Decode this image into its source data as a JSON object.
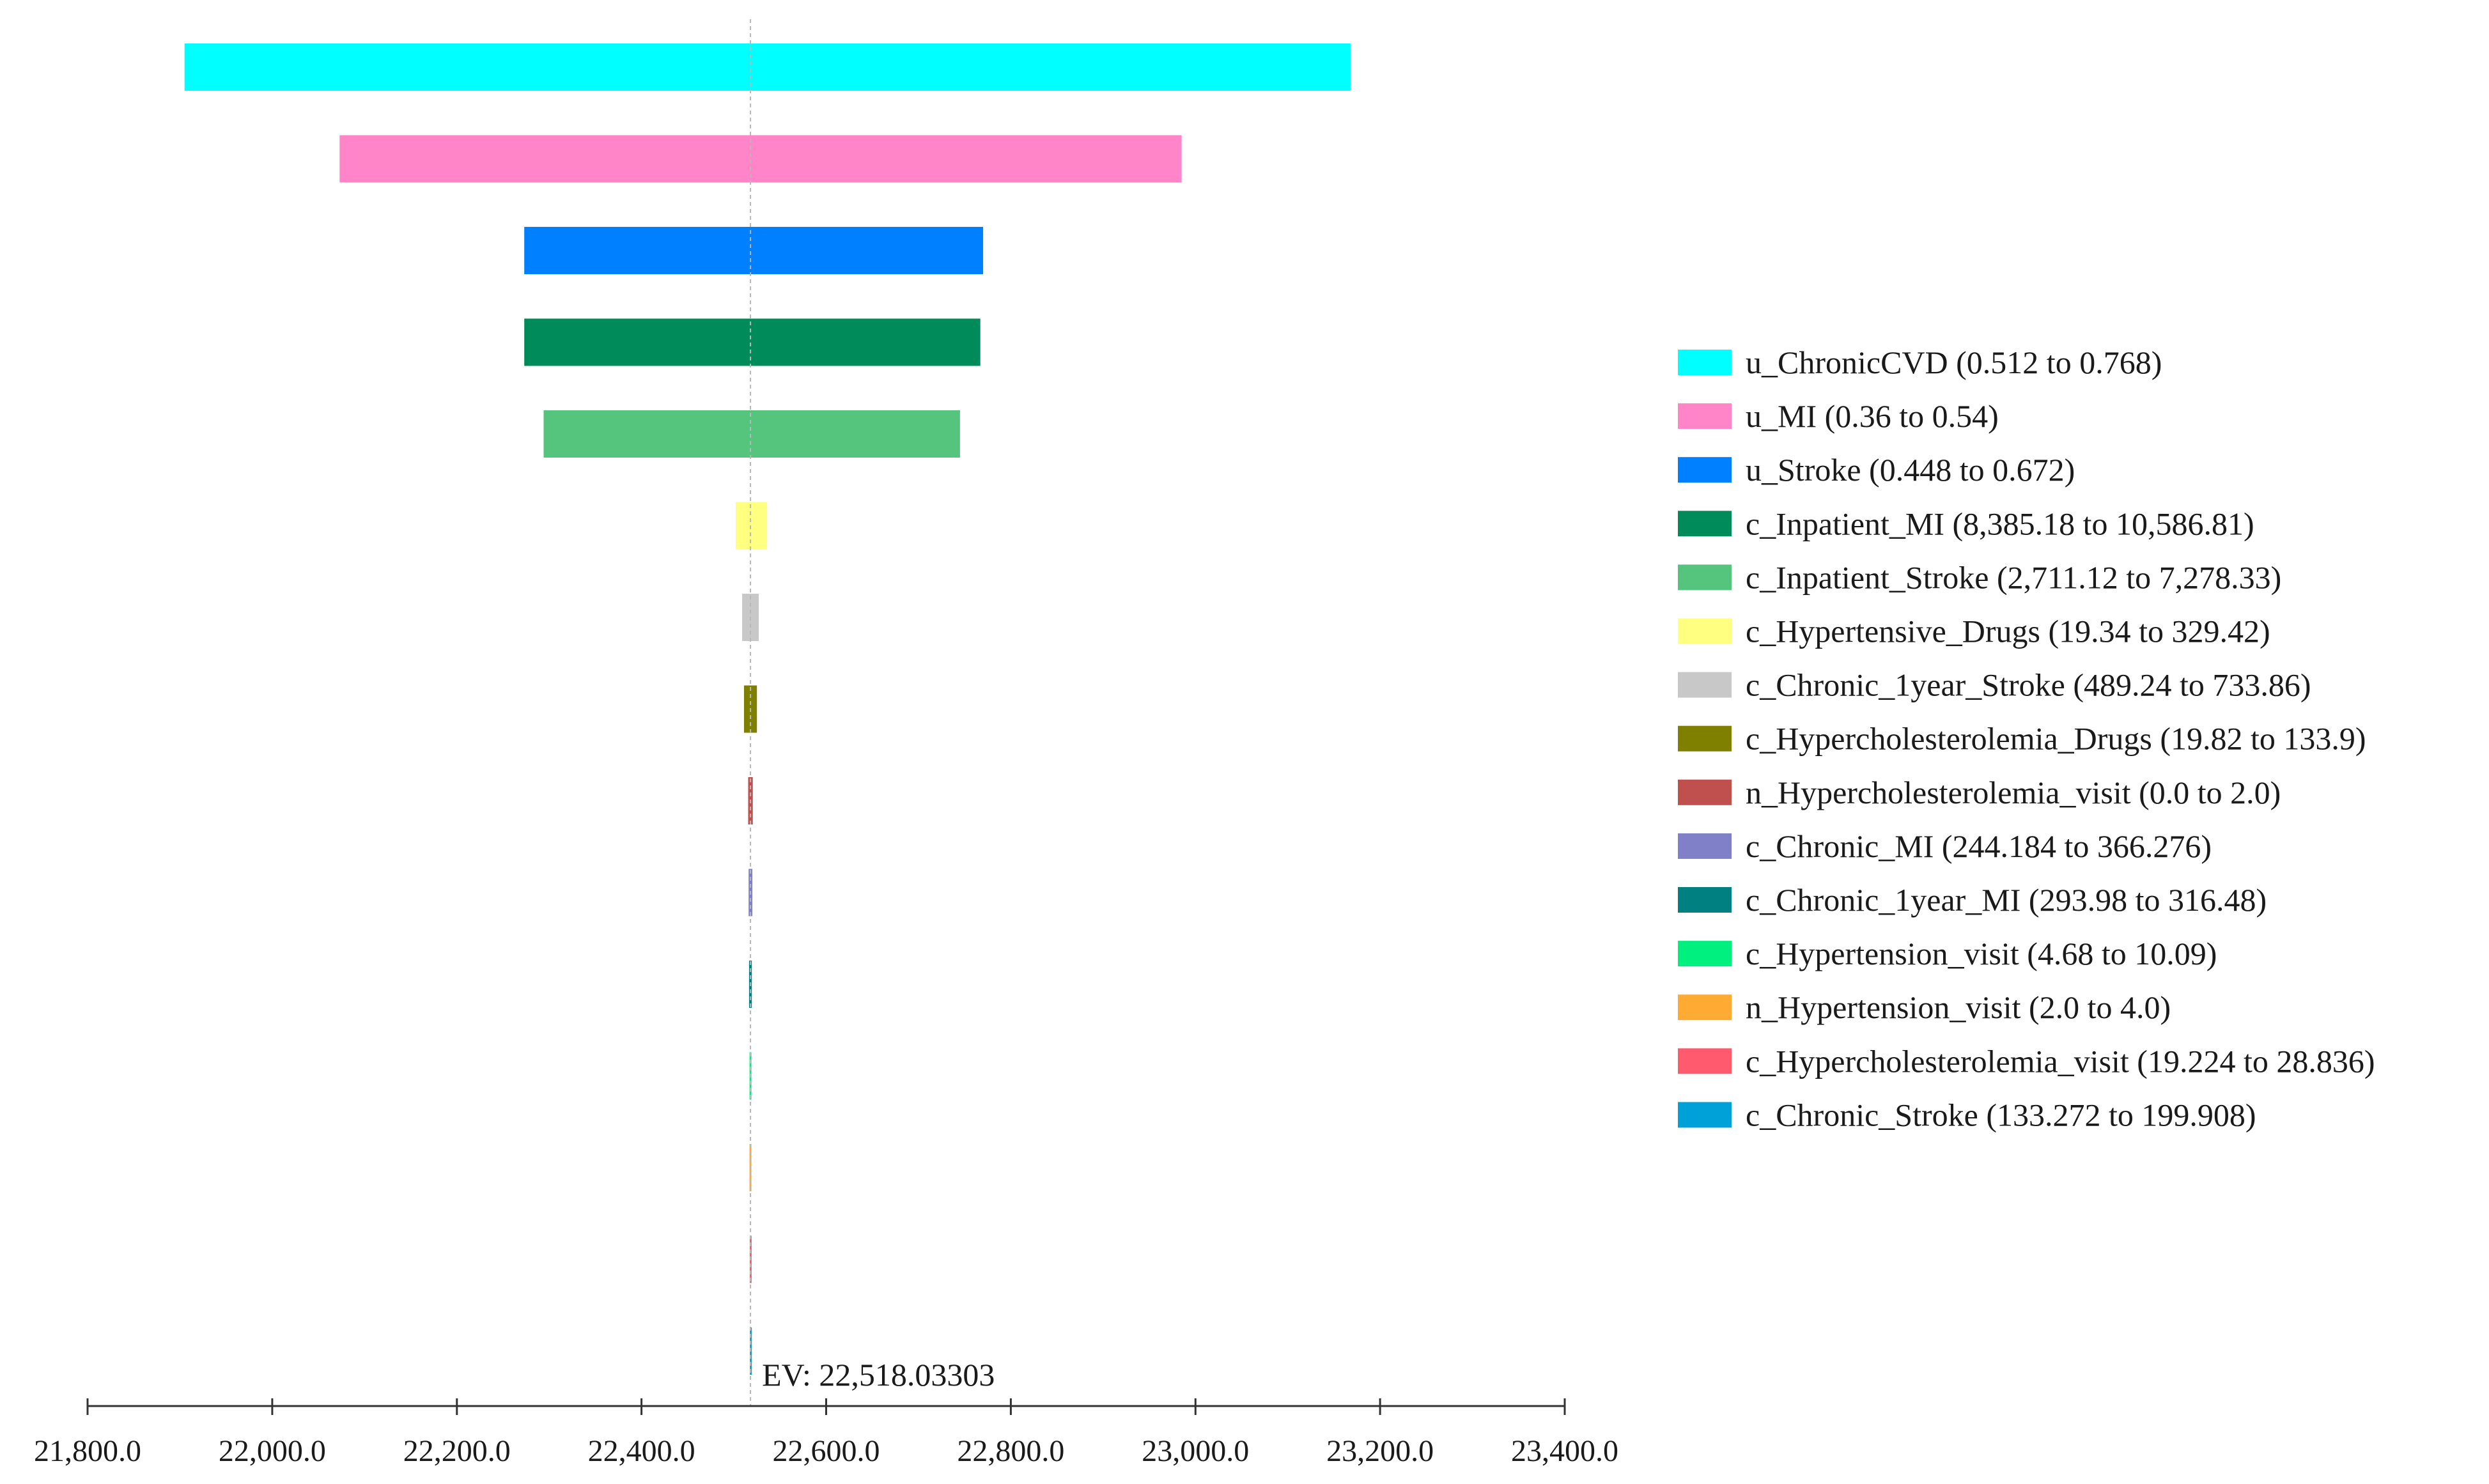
{
  "chart_data": {
    "type": "tornado",
    "ev_label": "EV: 22,518.03303",
    "ev_value": 22518.03303,
    "xlim": [
      21800.0,
      23400.0
    ],
    "x_ticks": [
      21800.0,
      22000.0,
      22200.0,
      22400.0,
      22600.0,
      22800.0,
      23000.0,
      23200.0,
      23400.0
    ],
    "x_tick_labels": [
      "21,800.0",
      "22,000.0",
      "22,200.0",
      "22,400.0",
      "22,600.0",
      "22,800.0",
      "23,000.0",
      "23,200.0",
      "23,400.0"
    ],
    "grid": false,
    "legend_position": "right",
    "series": [
      {
        "name": "u_ChronicCVD",
        "range_text": "(0.512 to 0.768)",
        "low": 21905,
        "high": 23168,
        "color": "#00FFFF"
      },
      {
        "name": "u_MI",
        "range_text": "(0.36 to 0.54)",
        "low": 22073,
        "high": 22985,
        "color": "#FF85C8"
      },
      {
        "name": "u_Stroke",
        "range_text": "(0.448 to 0.672)",
        "low": 22273,
        "high": 22770,
        "color": "#0080FF"
      },
      {
        "name": "c_Inpatient_MI",
        "range_text": "(8,385.18 to 10,586.81)",
        "low": 22273,
        "high": 22767,
        "color": "#008C5A"
      },
      {
        "name": "c_Inpatient_Stroke",
        "range_text": "(2,711.12 to 7,278.33)",
        "low": 22294,
        "high": 22745,
        "color": "#55C47D"
      },
      {
        "name": "c_Hypertensive_Drugs",
        "range_text": "(19.34 to 329.42)",
        "low": 22502,
        "high": 22536,
        "color": "#FFFF80"
      },
      {
        "name": "c_Chronic_1year_Stroke",
        "range_text": "(489.24 to 733.86)",
        "low": 22509,
        "high": 22527,
        "color": "#C8C8C8"
      },
      {
        "name": "c_Hypercholesterolemia_Drugs",
        "range_text": "(19.82 to 133.9)",
        "low": 22511,
        "high": 22525,
        "color": "#808000"
      },
      {
        "name": "n_Hypercholesterolemia_visit",
        "range_text": "(0.0 to 2.0)",
        "low": 22515.5,
        "high": 22520.5,
        "color": "#C0504D"
      },
      {
        "name": "c_Chronic_MI",
        "range_text": "(244.184 to 366.276)",
        "low": 22516,
        "high": 22520,
        "color": "#8080C8"
      },
      {
        "name": "c_Chronic_1year_MI",
        "range_text": "(293.98 to 316.48)",
        "low": 22516.5,
        "high": 22519.5,
        "color": "#008080"
      },
      {
        "name": "c_Hypertension_visit",
        "range_text": "(4.68 to 10.09)",
        "low": 22517,
        "high": 22519,
        "color": "#00F080"
      },
      {
        "name": "n_Hypertension_visit",
        "range_text": "(2.0 to 4.0)",
        "low": 22517,
        "high": 22519,
        "color": "#FFAA33"
      },
      {
        "name": "c_Hypercholesterolemia_visit",
        "range_text": "(19.224 to 28.836)",
        "low": 22517.2,
        "high": 22518.8,
        "color": "#FF5A6E"
      },
      {
        "name": "c_Chronic_Stroke",
        "range_text": "(133.272 to 199.908)",
        "low": 22517.4,
        "high": 22518.6,
        "color": "#00A0D8"
      }
    ]
  }
}
